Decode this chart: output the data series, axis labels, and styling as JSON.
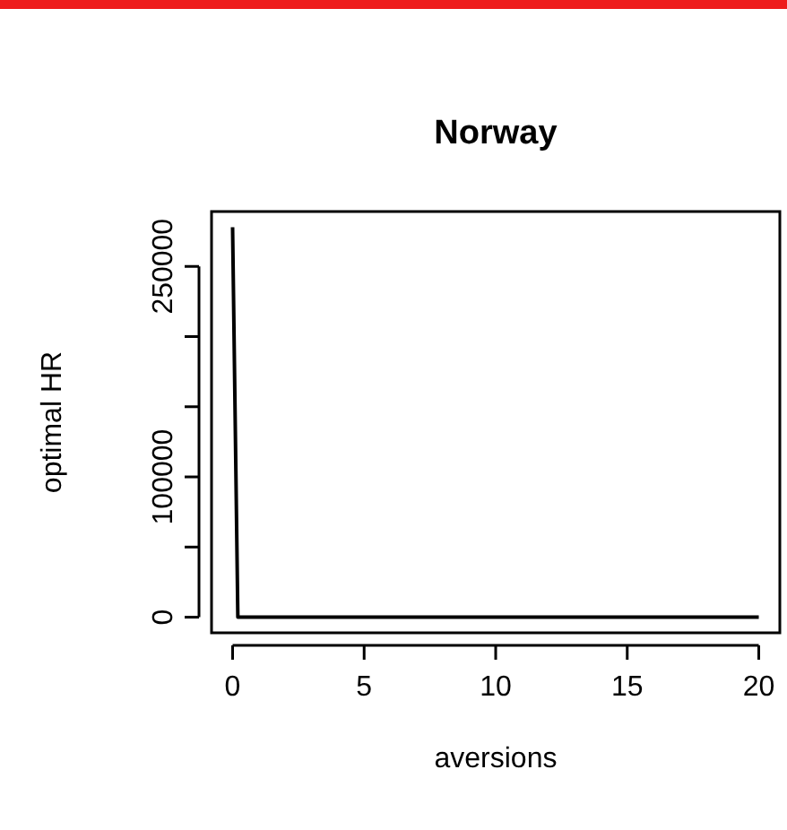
{
  "chart_data": {
    "type": "line",
    "title": "Norway",
    "xlabel": "aversions",
    "ylabel": "optimal HR",
    "x": [
      0,
      0.2,
      20
    ],
    "series": [
      {
        "color": "#000000",
        "values": [
          278000,
          0,
          0
        ]
      }
    ],
    "xlim": [
      -0.8,
      20.8
    ],
    "xticks": [
      0,
      5,
      10,
      15,
      20
    ],
    "ylim": [
      -11120,
      289120
    ],
    "yticks": [
      0,
      {
        "value": 50000,
        "label": null
      },
      100000,
      {
        "value": 150000,
        "label": null
      },
      {
        "value": 200000,
        "label": null
      },
      250000
    ],
    "grid": false,
    "marker": "none",
    "line_style": "solid"
  }
}
